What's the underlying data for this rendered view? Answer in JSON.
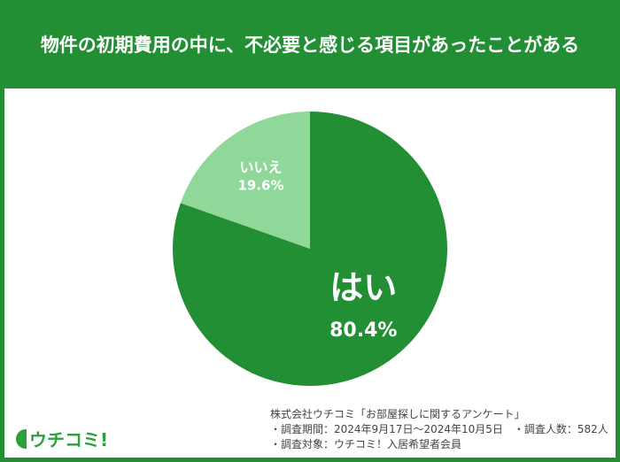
{
  "title": "物件の初期費用の中に、不必要と感じる項目があったことがある",
  "chart_data": {
    "type": "pie",
    "title": "物件の初期費用の中に、不必要と感じる項目があったことがある",
    "slices": [
      {
        "label": "はい",
        "value": 80.4,
        "value_label": "80.4%",
        "color": "#228f35"
      },
      {
        "label": "いいえ",
        "value": 19.6,
        "value_label": "19.6%",
        "color": "#8fd899"
      }
    ]
  },
  "notes": [
    "株式会社ウチコミ「お部屋探しに関するアンケート」",
    "・調査期間：2024年9月17日〜2024年10月5日　・調査人数：582人",
    "・調査対象：ウチコミ！入居希望者会員"
  ],
  "logo": "ウチコミ!"
}
